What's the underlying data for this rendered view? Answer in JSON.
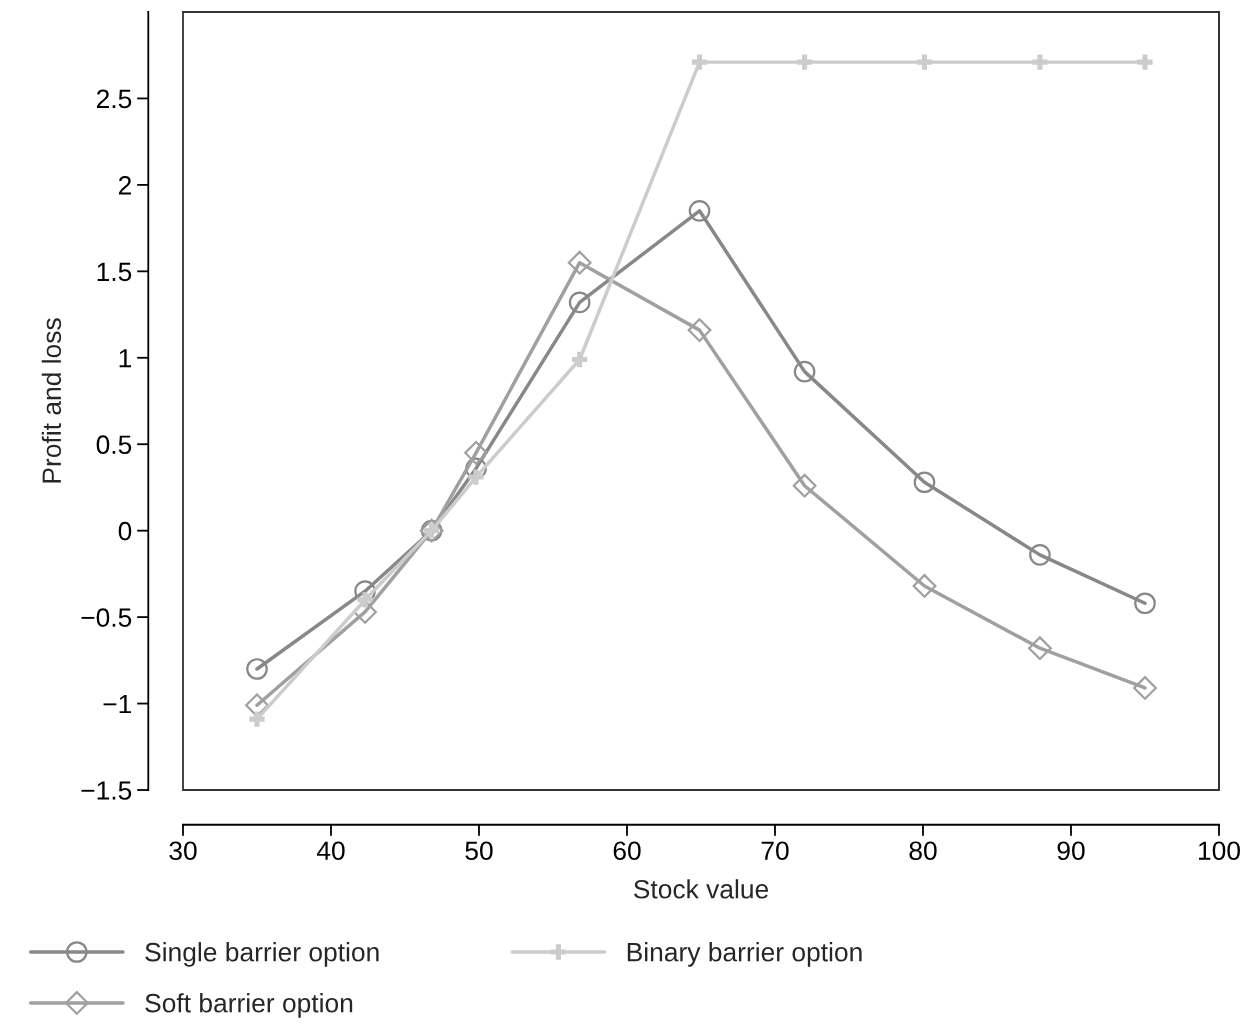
{
  "chart_data": {
    "type": "line",
    "xlabel": "Stock value",
    "ylabel": "Profit and loss",
    "x": [
      35,
      42.3,
      46.8,
      49.8,
      56.8,
      64.9,
      72,
      80.1,
      87.9,
      95
    ],
    "series": [
      {
        "name": "Single barrier option",
        "color": "#888888",
        "marker": "circle",
        "values": [
          -0.8,
          -0.35,
          0.0,
          0.36,
          1.32,
          1.85,
          0.92,
          0.28,
          -0.14,
          -0.42
        ]
      },
      {
        "name": "Soft barrier option",
        "color": "#a0a0a0",
        "marker": "diamond",
        "values": [
          -1.01,
          -0.47,
          0.0,
          0.45,
          1.55,
          1.16,
          0.26,
          -0.32,
          -0.68,
          -0.91
        ]
      },
      {
        "name": "Binary barrier option",
        "color": "#cccccc",
        "marker": "cross",
        "values": [
          -1.09,
          -0.4,
          0.0,
          0.31,
          0.99,
          2.71,
          2.71,
          2.71,
          2.71,
          2.71
        ]
      }
    ],
    "xlim": [
      30,
      100
    ],
    "xticks": [
      30,
      40,
      50,
      60,
      70,
      80,
      90,
      100
    ],
    "ylim": [
      -1.5,
      3.0
    ],
    "yticks": [
      -1.5,
      -1,
      -0.5,
      0,
      0.5,
      1,
      1.5,
      2,
      2.5
    ],
    "grid": false,
    "legend": "bottom",
    "line_style": "solid"
  }
}
